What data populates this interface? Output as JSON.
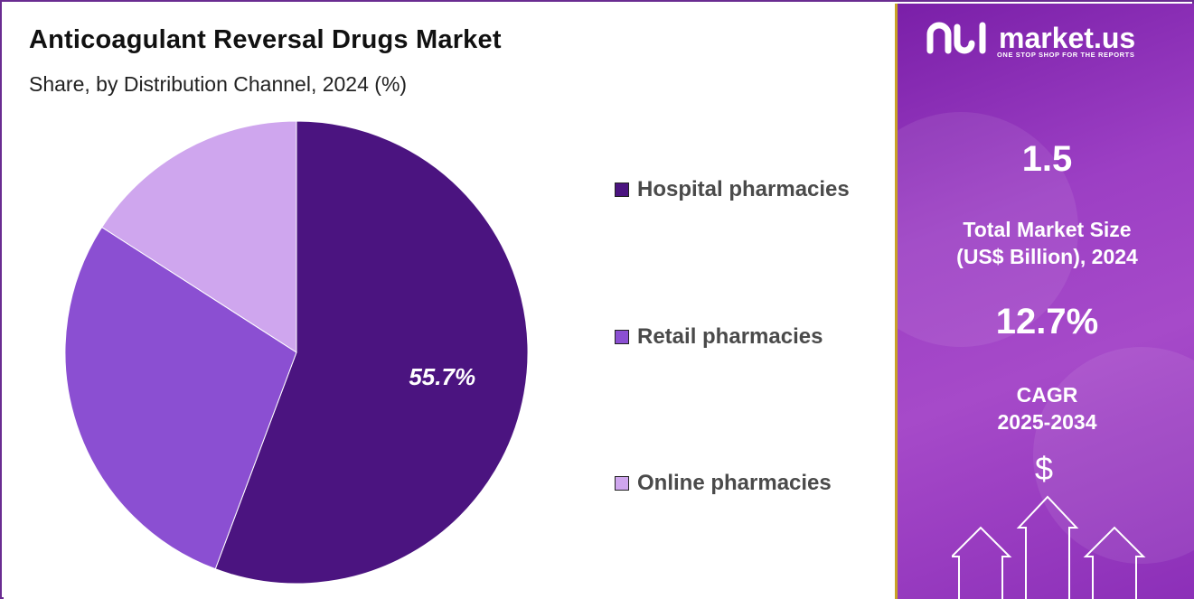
{
  "header": {
    "title": "Anticoagulant Reversal Drugs Market",
    "subtitle": "Share, by Distribution Channel, 2024 (%)"
  },
  "chart_data": {
    "type": "pie",
    "categories": [
      "Hospital pharmacies",
      "Retail pharmacies",
      "Online pharmacies"
    ],
    "values": [
      55.7,
      28.4,
      15.9
    ],
    "colors": [
      "#4b1480",
      "#8b4fd2",
      "#cfa6ee"
    ],
    "data_labels": [
      "55.7%",
      "",
      ""
    ],
    "legend_position": "right"
  },
  "brand": {
    "name": "market.us",
    "tagline": "ONE STOP SHOP FOR THE REPORTS",
    "icon": "market-us-logo-icon"
  },
  "stats": {
    "market_size_value": "1.5",
    "market_size_label_line1": "Total Market Size",
    "market_size_label_line2": "(US$ Billion), 2024",
    "cagr_value": "12.7%",
    "cagr_label_line1": "CAGR",
    "cagr_label_line2": "2025-2034",
    "currency_symbol": "$"
  },
  "colors": {
    "panel_accent": "#9c3fc4",
    "panel_border": "#c9a227",
    "frame": "#6a2c91"
  }
}
